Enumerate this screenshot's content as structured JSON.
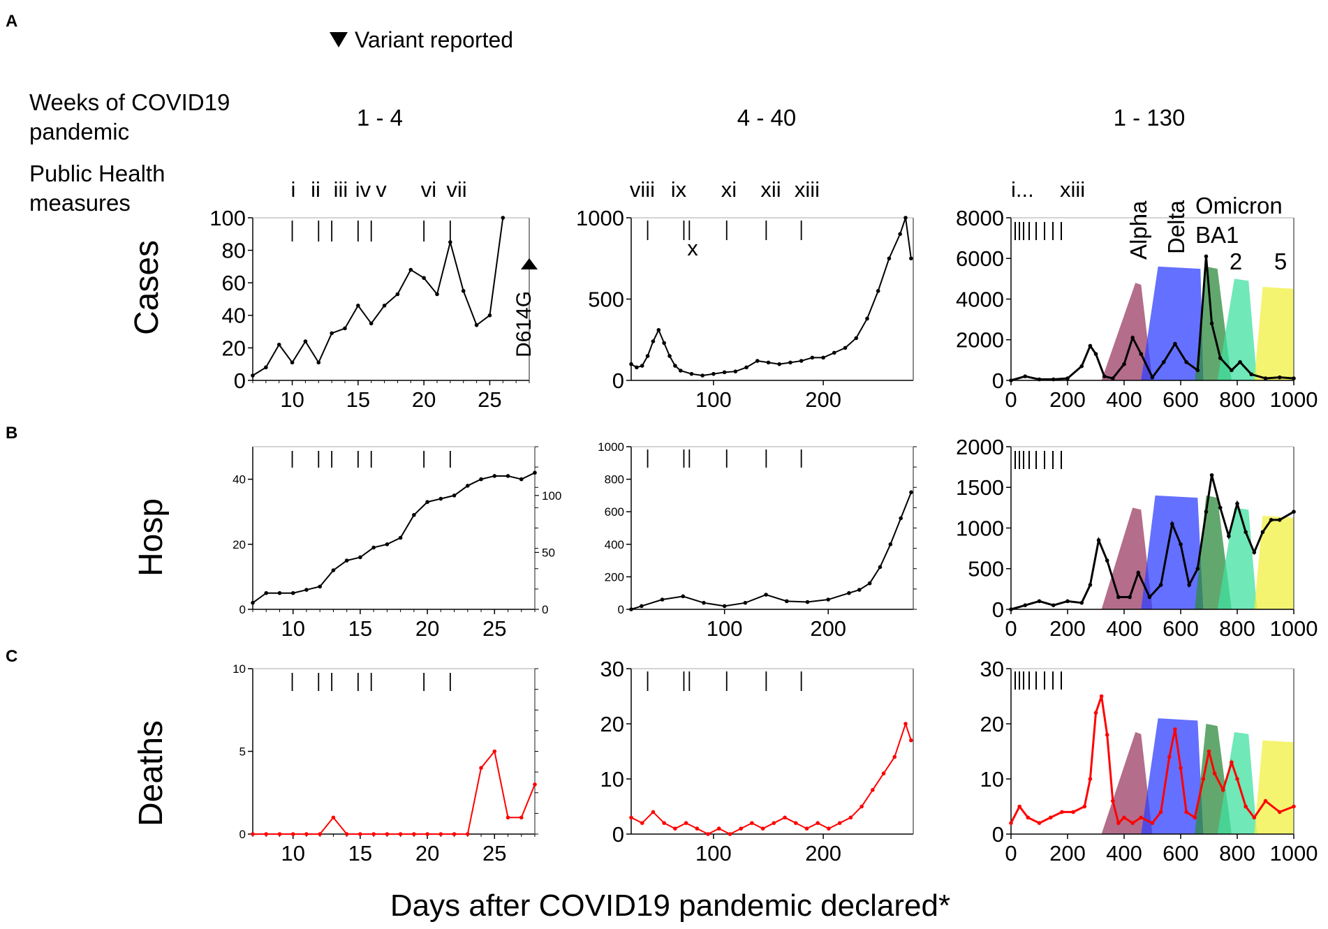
{
  "labels": {
    "panel_a": "A",
    "panel_b": "B",
    "panel_c": "C",
    "variant_legend": "Variant reported",
    "weeks_label_1": "Weeks of COVID19",
    "weeks_label_2": "pandemic",
    "weeks_col1": "1 - 4",
    "weeks_col2": "4 - 40",
    "weeks_col3": "1 - 130",
    "ph_label_1": "Public Health",
    "ph_label_2": "measures",
    "row_cases": "Cases",
    "row_hosp": "Hosp",
    "row_deaths": "Deaths",
    "x_axis": "Days after COVID19 pandemic declared*"
  },
  "colors": {
    "axis": "#000000",
    "deaths_line": "#ff0000",
    "alpha": "#9b3c64",
    "delta": "#3040ff",
    "omicron_ba1": "#2e8b3e",
    "omicron_ba2": "#40e0a0",
    "omicron_ba5": "#f0f040"
  },
  "measures": {
    "col1_labels": [
      "i",
      "ii",
      "iii",
      "iv",
      "v",
      "vi",
      "vii"
    ],
    "col1_days": [
      10,
      12,
      13,
      15,
      16,
      20,
      22
    ],
    "col2_labels": [
      "viii",
      "ix",
      "x",
      "xi",
      "xii",
      "xiii"
    ],
    "col2_days": [
      40,
      73,
      78,
      112,
      148,
      180
    ],
    "col3_labels": [
      "i...",
      "xiii"
    ]
  },
  "variant_labels": {
    "d614g": "D614G",
    "alpha": "Alpha",
    "delta": "Delta",
    "omicron": "Omicron",
    "ba1": "BA1",
    "ba2": "2",
    "ba5": "5"
  },
  "chart_data": [
    {
      "id": "cases_1_4",
      "type": "line",
      "title": "Cases",
      "xlabel": "",
      "ylabel": "Cases",
      "xlim": [
        7,
        28
      ],
      "ylim": [
        0,
        100
      ],
      "xticks": [
        10,
        15,
        20,
        25
      ],
      "yticks": [
        0,
        20,
        40,
        60,
        80,
        100
      ],
      "series": [
        {
          "name": "Cases",
          "x": [
            7,
            8,
            9,
            10,
            11,
            12,
            13,
            14,
            15,
            16,
            17,
            18,
            19,
            20,
            21,
            22,
            23,
            24,
            25,
            26
          ],
          "values": [
            3,
            8,
            22,
            11,
            24,
            11,
            29,
            32,
            46,
            35,
            46,
            53,
            68,
            63,
            53,
            85,
            55,
            34,
            40,
            100
          ]
        }
      ]
    },
    {
      "id": "cases_4_40",
      "type": "line",
      "title": "Cases",
      "xlabel": "",
      "ylabel": "",
      "xlim": [
        25,
        282
      ],
      "ylim": [
        0,
        1000
      ],
      "xticks": [
        100,
        200
      ],
      "yticks": [
        0,
        500,
        1000
      ],
      "series": [
        {
          "name": "Cases",
          "x": [
            25,
            30,
            35,
            40,
            45,
            50,
            55,
            60,
            65,
            70,
            80,
            90,
            100,
            110,
            120,
            130,
            140,
            150,
            160,
            170,
            180,
            190,
            200,
            210,
            220,
            230,
            240,
            250,
            260,
            270,
            275,
            280
          ],
          "values": [
            100,
            80,
            90,
            150,
            240,
            310,
            230,
            150,
            90,
            60,
            40,
            30,
            40,
            50,
            55,
            80,
            120,
            110,
            100,
            110,
            120,
            140,
            140,
            170,
            200,
            260,
            380,
            550,
            750,
            900,
            1000,
            750
          ]
        }
      ]
    },
    {
      "id": "cases_1_130",
      "type": "area",
      "title": "Cases",
      "xlabel": "",
      "ylabel": "",
      "xlim": [
        0,
        1000
      ],
      "ylim": [
        0,
        8000
      ],
      "xticks": [
        0,
        200,
        400,
        600,
        800,
        1000
      ],
      "yticks": [
        0,
        2000,
        4000,
        6000,
        8000
      ],
      "series": [
        {
          "name": "Cases",
          "x": [
            0,
            50,
            100,
            150,
            200,
            250,
            280,
            300,
            330,
            360,
            400,
            430,
            460,
            500,
            540,
            580,
            620,
            660,
            690,
            710,
            740,
            780,
            810,
            850,
            900,
            950,
            1000
          ],
          "values": [
            0,
            200,
            50,
            50,
            100,
            700,
            1700,
            1300,
            200,
            100,
            800,
            2100,
            1300,
            150,
            900,
            1800,
            900,
            500,
            6100,
            2800,
            1100,
            500,
            900,
            300,
            100,
            150,
            100
          ]
        }
      ],
      "variants": [
        {
          "name": "Alpha",
          "start": 320,
          "peak_start": 440,
          "peak_end": 460,
          "end": 500,
          "level": 4800
        },
        {
          "name": "Delta",
          "start": 460,
          "peak_start": 520,
          "peak_end": 670,
          "end": 680,
          "level": 5600
        },
        {
          "name": "Omicron BA1",
          "start": 650,
          "peak_start": 690,
          "peak_end": 730,
          "end": 780,
          "level": 5600
        },
        {
          "name": "BA2",
          "start": 730,
          "peak_start": 790,
          "peak_end": 840,
          "end": 870,
          "level": 5000
        },
        {
          "name": "BA5",
          "start": 860,
          "peak_start": 890,
          "peak_end": 1000,
          "end": 1000,
          "level": 4600
        }
      ]
    },
    {
      "id": "hosp_1_4",
      "type": "line",
      "title": "Hosp",
      "xlabel": "",
      "ylabel": "Hosp",
      "xlim": [
        7,
        28
      ],
      "ylim": [
        0,
        50
      ],
      "xticks": [
        10,
        15,
        20,
        25
      ],
      "yticks": [
        0,
        20,
        40
      ],
      "y2ticks": [
        0,
        50,
        100
      ],
      "series": [
        {
          "name": "Hosp",
          "x": [
            7,
            8,
            9,
            10,
            11,
            12,
            13,
            14,
            15,
            16,
            17,
            18,
            19,
            20,
            21,
            22,
            23,
            24,
            25,
            26,
            27,
            28
          ],
          "values": [
            2,
            5,
            5,
            5,
            6,
            7,
            12,
            15,
            16,
            19,
            20,
            22,
            29,
            33,
            34,
            35,
            38,
            40,
            41,
            41,
            40,
            42
          ]
        }
      ]
    },
    {
      "id": "hosp_4_40",
      "type": "line",
      "title": "Hosp",
      "xlabel": "",
      "ylabel": "",
      "xlim": [
        10,
        282
      ],
      "ylim": [
        0,
        1000
      ],
      "xticks": [
        100,
        200
      ],
      "yticks": [
        0,
        200,
        400,
        600,
        800,
        1000
      ],
      "series": [
        {
          "name": "Hosp",
          "x": [
            10,
            20,
            40,
            60,
            80,
            100,
            120,
            140,
            160,
            180,
            200,
            220,
            230,
            240,
            250,
            260,
            270,
            280
          ],
          "values": [
            0,
            20,
            60,
            80,
            40,
            20,
            40,
            90,
            50,
            45,
            60,
            100,
            120,
            160,
            260,
            400,
            560,
            720
          ]
        }
      ]
    },
    {
      "id": "hosp_1_130",
      "type": "area",
      "title": "Hosp",
      "xlabel": "",
      "ylabel": "",
      "xlim": [
        0,
        1000
      ],
      "ylim": [
        0,
        2000
      ],
      "xticks": [
        0,
        200,
        400,
        600,
        800,
        1000
      ],
      "yticks": [
        0,
        500,
        1000,
        1500,
        2000
      ],
      "series": [
        {
          "name": "Hosp",
          "x": [
            0,
            50,
            100,
            150,
            200,
            250,
            280,
            310,
            340,
            380,
            420,
            450,
            490,
            530,
            570,
            600,
            630,
            660,
            690,
            710,
            740,
            770,
            800,
            830,
            860,
            890,
            920,
            950,
            1000
          ],
          "values": [
            0,
            50,
            100,
            50,
            100,
            80,
            300,
            850,
            600,
            150,
            150,
            450,
            150,
            300,
            1050,
            800,
            300,
            500,
            1200,
            1650,
            1250,
            900,
            1300,
            950,
            700,
            950,
            1100,
            1100,
            1200
          ]
        }
      ],
      "variants": [
        {
          "name": "Alpha",
          "start": 320,
          "peak_start": 430,
          "peak_end": 460,
          "end": 500,
          "level": 1250
        },
        {
          "name": "Delta",
          "start": 460,
          "peak_start": 510,
          "peak_end": 660,
          "end": 680,
          "level": 1400
        },
        {
          "name": "Omicron BA1",
          "start": 650,
          "peak_start": 690,
          "peak_end": 730,
          "end": 780,
          "level": 1400
        },
        {
          "name": "BA2",
          "start": 730,
          "peak_start": 790,
          "peak_end": 840,
          "end": 870,
          "level": 1250
        },
        {
          "name": "BA5",
          "start": 860,
          "peak_start": 890,
          "peak_end": 1000,
          "end": 1000,
          "level": 1150
        }
      ]
    },
    {
      "id": "deaths_1_4",
      "type": "line",
      "title": "Deaths",
      "xlabel": "",
      "ylabel": "Deaths",
      "xlim": [
        7,
        28
      ],
      "ylim": [
        0,
        10
      ],
      "xticks": [
        10,
        15,
        20,
        25
      ],
      "yticks": [
        0,
        5,
        10
      ],
      "series": [
        {
          "name": "Deaths",
          "x": [
            7,
            8,
            9,
            10,
            11,
            12,
            13,
            14,
            15,
            16,
            17,
            18,
            19,
            20,
            21,
            22,
            23,
            24,
            25,
            26,
            27,
            28
          ],
          "values": [
            0,
            0,
            0,
            0,
            0,
            0,
            1,
            0,
            0,
            0,
            0,
            0,
            0,
            0,
            0,
            0,
            0,
            4,
            5,
            1,
            1,
            3
          ]
        }
      ]
    },
    {
      "id": "deaths_4_40",
      "type": "line",
      "title": "Deaths",
      "xlabel": "",
      "ylabel": "",
      "xlim": [
        25,
        282
      ],
      "ylim": [
        0,
        30
      ],
      "xticks": [
        100,
        200
      ],
      "yticks": [
        0,
        10,
        20,
        30
      ],
      "series": [
        {
          "name": "Deaths",
          "x": [
            25,
            35,
            45,
            55,
            65,
            75,
            85,
            95,
            105,
            115,
            125,
            135,
            145,
            155,
            165,
            175,
            185,
            195,
            205,
            215,
            225,
            235,
            245,
            255,
            265,
            275,
            280
          ],
          "values": [
            3,
            2,
            4,
            2,
            1,
            2,
            1,
            0,
            1,
            0,
            1,
            2,
            1,
            2,
            3,
            2,
            1,
            2,
            1,
            2,
            3,
            5,
            8,
            11,
            14,
            20,
            17
          ]
        }
      ]
    },
    {
      "id": "deaths_1_130",
      "type": "area",
      "title": "Deaths",
      "xlabel": "",
      "ylabel": "",
      "xlim": [
        0,
        1000
      ],
      "ylim": [
        0,
        30
      ],
      "xticks": [
        0,
        200,
        400,
        600,
        800,
        1000
      ],
      "yticks": [
        0,
        10,
        20,
        30
      ],
      "series": [
        {
          "name": "Deaths",
          "x": [
            0,
            30,
            60,
            100,
            140,
            180,
            220,
            260,
            280,
            300,
            320,
            340,
            360,
            380,
            400,
            430,
            460,
            500,
            530,
            560,
            580,
            600,
            620,
            650,
            680,
            700,
            720,
            750,
            780,
            800,
            830,
            860,
            900,
            950,
            1000
          ],
          "values": [
            2,
            5,
            3,
            2,
            3,
            4,
            4,
            5,
            10,
            22,
            25,
            18,
            6,
            2,
            3,
            2,
            3,
            2,
            4,
            14,
            19,
            12,
            4,
            3,
            10,
            15,
            11,
            8,
            13,
            10,
            5,
            3,
            6,
            4,
            5
          ]
        }
      ],
      "variants": [
        {
          "name": "Alpha",
          "start": 320,
          "peak_start": 440,
          "peak_end": 460,
          "end": 500,
          "level": 18.5
        },
        {
          "name": "Delta",
          "start": 460,
          "peak_start": 520,
          "peak_end": 660,
          "end": 680,
          "level": 21
        },
        {
          "name": "Omicron BA1",
          "start": 650,
          "peak_start": 690,
          "peak_end": 730,
          "end": 780,
          "level": 20
        },
        {
          "name": "BA2",
          "start": 730,
          "peak_start": 790,
          "peak_end": 840,
          "end": 870,
          "level": 18.5
        },
        {
          "name": "BA5",
          "start": 860,
          "peak_start": 890,
          "peak_end": 1000,
          "end": 1000,
          "level": 17
        }
      ]
    }
  ]
}
